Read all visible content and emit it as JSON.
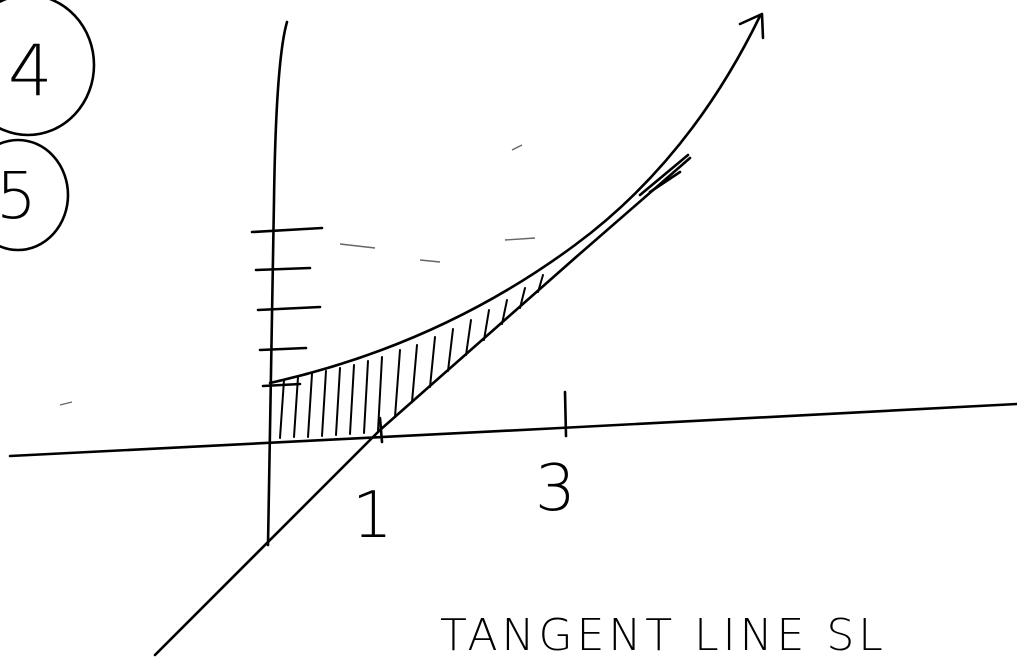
{
  "labels": {
    "circle_top": "4",
    "circle_bottom": "5",
    "tick_one": "1",
    "tick_three": "3",
    "caption": "TANGENT LINE SL"
  }
}
